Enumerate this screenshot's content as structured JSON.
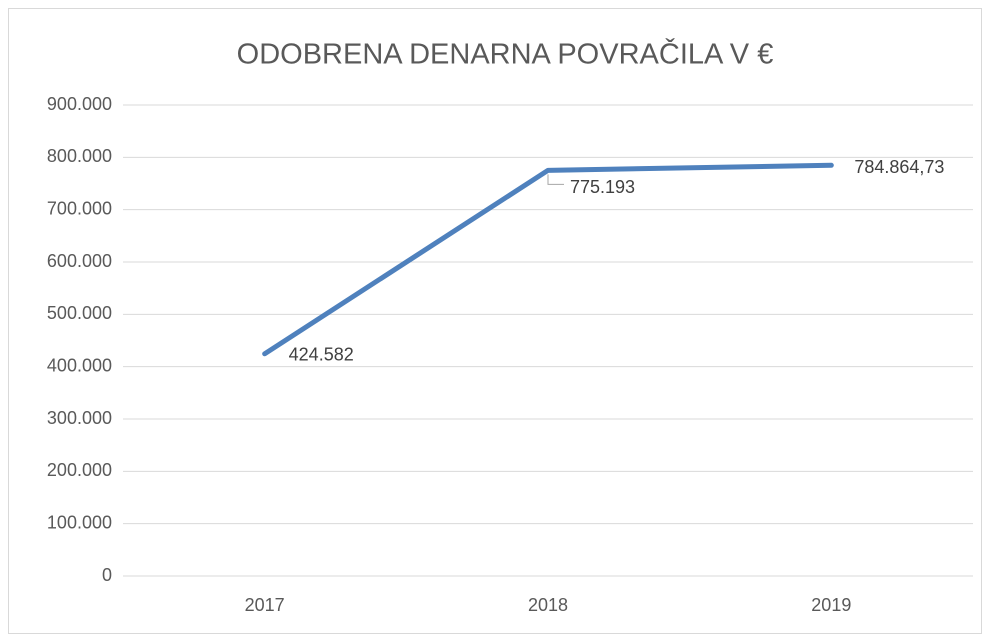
{
  "chart_data": {
    "type": "line",
    "title": "ODOBRENA DENARNA POVRAČILA V €",
    "categories": [
      "2017",
      "2018",
      "2019"
    ],
    "series": [
      {
        "name": "Odobrena denarna povračila",
        "color": "#4f81bd",
        "values": [
          424582,
          775193,
          784864.73
        ],
        "value_labels": [
          "424.582",
          "775.193",
          "784.864,73"
        ]
      }
    ],
    "ylim": [
      0,
      900000
    ],
    "yticks": [
      0,
      {
        "value": 100000,
        "label": "100.000"
      },
      {
        "value": 200000,
        "label": "200.000"
      },
      {
        "value": 300000,
        "label": "300.000"
      },
      {
        "value": 400000,
        "label": "400.000"
      },
      {
        "value": 500000,
        "label": "500.000"
      },
      {
        "value": 600000,
        "label": "600.000"
      },
      {
        "value": 700000,
        "label": "700.000"
      },
      {
        "value": 800000,
        "label": "800.000"
      },
      {
        "value": 900000,
        "label": "900.000"
      }
    ],
    "grid": true
  }
}
